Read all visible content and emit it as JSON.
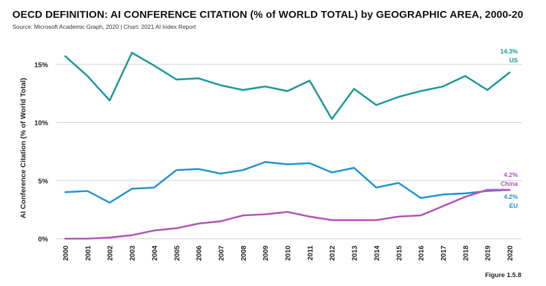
{
  "header": {
    "title": "OECD DEFINITION: AI CONFERENCE CITATION (% of WORLD TOTAL) by GEOGRAPHIC AREA, 2000-20",
    "source": "Source: Microsoft Academic Graph, 2020 | Chart: 2021 AI Index Report"
  },
  "footer": {
    "figure": "Figure 1.5.8"
  },
  "chart_data": {
    "type": "line",
    "title": "OECD DEFINITION: AI CONFERENCE CITATION (% of WORLD TOTAL) by GEOGRAPHIC AREA, 2000-20",
    "xlabel": "",
    "ylabel": "AI Conference Citation (% of World Total)",
    "x": [
      "2000",
      "2001",
      "2002",
      "2003",
      "2004",
      "2005",
      "2006",
      "2007",
      "2008",
      "2009",
      "2010",
      "2011",
      "2012",
      "2013",
      "2014",
      "2015",
      "2016",
      "2017",
      "2018",
      "2019",
      "2020"
    ],
    "ylim": [
      0,
      17
    ],
    "yticks": [
      0,
      5,
      10,
      15
    ],
    "ytick_labels": [
      "0%",
      "5%",
      "10%",
      "15%"
    ],
    "grid": "horizontal",
    "legend": "end-labels",
    "series": [
      {
        "name": "US",
        "color": "#1a9898",
        "end_label": "14.3%",
        "values": [
          15.7,
          14.0,
          11.9,
          16.0,
          14.9,
          13.7,
          13.8,
          13.2,
          12.8,
          13.1,
          12.7,
          13.6,
          10.3,
          12.9,
          11.5,
          12.2,
          12.7,
          13.1,
          14.0,
          12.8,
          14.3
        ]
      },
      {
        "name": "EU",
        "color": "#2193cf",
        "end_label": "4.2%",
        "values": [
          4.0,
          4.1,
          3.1,
          4.3,
          4.4,
          5.9,
          6.0,
          5.6,
          5.9,
          6.6,
          6.4,
          6.5,
          5.7,
          6.1,
          4.4,
          4.8,
          3.5,
          3.8,
          3.9,
          4.1,
          4.2
        ]
      },
      {
        "name": "China",
        "color": "#b053b8",
        "end_label": "4.2%",
        "values": [
          0.0,
          0.0,
          0.1,
          0.3,
          0.7,
          0.9,
          1.3,
          1.5,
          2.0,
          2.1,
          2.3,
          1.9,
          1.6,
          1.6,
          1.6,
          1.9,
          2.0,
          2.8,
          3.6,
          4.2,
          4.2
        ]
      }
    ]
  }
}
